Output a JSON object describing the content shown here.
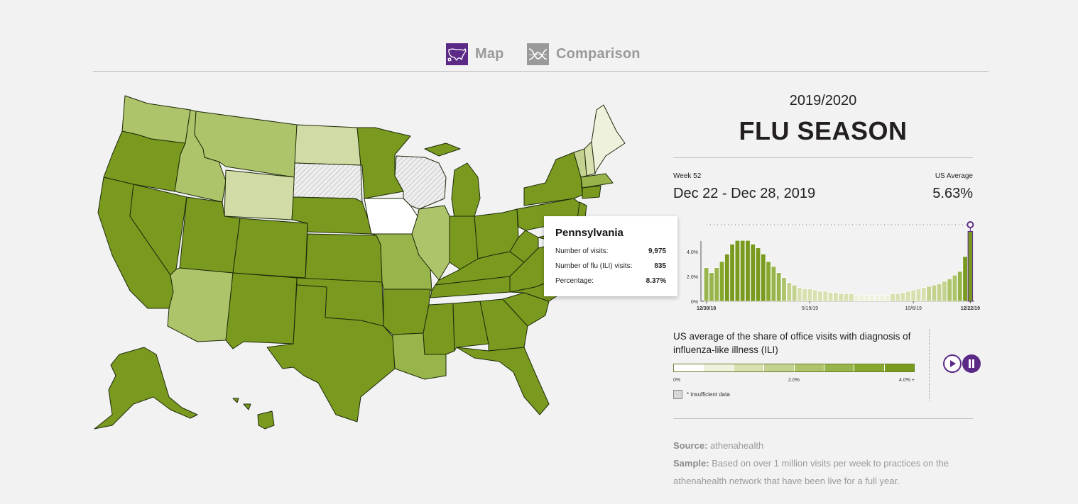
{
  "tabs": [
    {
      "label": "Map",
      "icon": "us-map-icon",
      "active": true
    },
    {
      "label": "Comparison",
      "icon": "comparison-chart-icon",
      "active": false
    }
  ],
  "colors": {
    "accent": "#5b2a86",
    "scale": [
      "#ffffff",
      "#eef2dd",
      "#d8e0b0",
      "#c4d290",
      "#aec46a",
      "#97b54a",
      "#86a82e",
      "#799a1f"
    ],
    "insufficient": "#dcdcdc"
  },
  "season": {
    "year": "2019/2020",
    "title": "FLU SEASON"
  },
  "week": {
    "label": "Week 52",
    "range": "Dec 22 - Dec 28, 2019"
  },
  "us_average": {
    "label": "US Average",
    "value": "5.63%"
  },
  "tooltip": {
    "state": "Pennsylvania",
    "rows": [
      {
        "label": "Number of visits:",
        "value": "9,975"
      },
      {
        "label": "Number of flu (ILI) visits:",
        "value": "835"
      },
      {
        "label": "Percentage:",
        "value": "8.37%"
      }
    ]
  },
  "legend": {
    "title": "US average of the share of office visits with diagnosis of influenza-like illness (ILI)",
    "ticks": [
      "0%",
      "2.0%",
      "4.0% +"
    ],
    "insufficient_label": "* insufficient data"
  },
  "controls": {
    "play": "play-icon",
    "pause": "pause-icon"
  },
  "source": {
    "source_label": "Source:",
    "source_value": "athenahealth",
    "sample_label": "Sample:",
    "sample_value": "Based on over 1 million visits per week to practices on the athenahealth network that have been live for a full year."
  },
  "chart_data": {
    "type": "bar",
    "y_ticks": [
      "0%",
      "2.0%",
      "4.0%"
    ],
    "ylim": [
      0,
      6
    ],
    "x_tick_labels": [
      "12/30/18",
      "5/19/19",
      "10/6/19",
      "12/22/19"
    ],
    "x_tick_index": [
      0,
      20,
      40,
      51
    ],
    "values": [
      2.7,
      2.3,
      2.7,
      3.2,
      3.8,
      4.6,
      4.9,
      4.9,
      4.9,
      4.6,
      4.3,
      3.8,
      3.2,
      2.8,
      2.3,
      1.9,
      1.5,
      1.3,
      1.1,
      1.0,
      1.0,
      0.9,
      0.8,
      0.8,
      0.7,
      0.7,
      0.6,
      0.6,
      0.6,
      0.5,
      0.5,
      0.5,
      0.5,
      0.5,
      0.5,
      0.5,
      0.6,
      0.6,
      0.7,
      0.8,
      0.9,
      1.0,
      1.1,
      1.2,
      1.3,
      1.4,
      1.6,
      1.8,
      2.1,
      2.4,
      3.6,
      5.63
    ],
    "highlight_last": true
  }
}
